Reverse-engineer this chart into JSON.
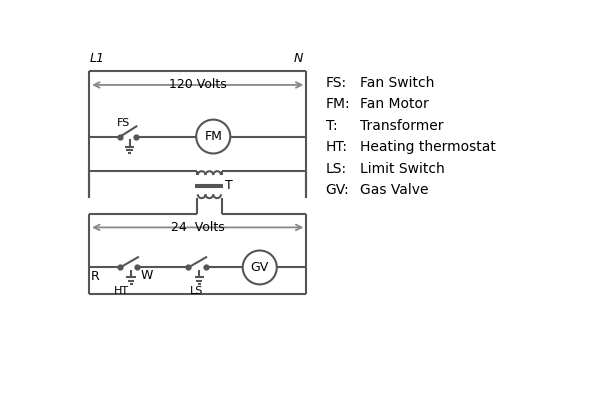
{
  "background_color": "#ffffff",
  "line_color": "#555555",
  "arrow_color": "#888888",
  "text_color": "#000000",
  "legend_items": [
    [
      "FS:",
      "Fan Switch"
    ],
    [
      "FM:",
      "Fan Motor"
    ],
    [
      "T:",
      "Transformer"
    ],
    [
      "HT:",
      "Heating thermostat"
    ],
    [
      "LS:",
      "Limit Switch"
    ],
    [
      "GV:",
      "Gas Valve"
    ]
  ]
}
